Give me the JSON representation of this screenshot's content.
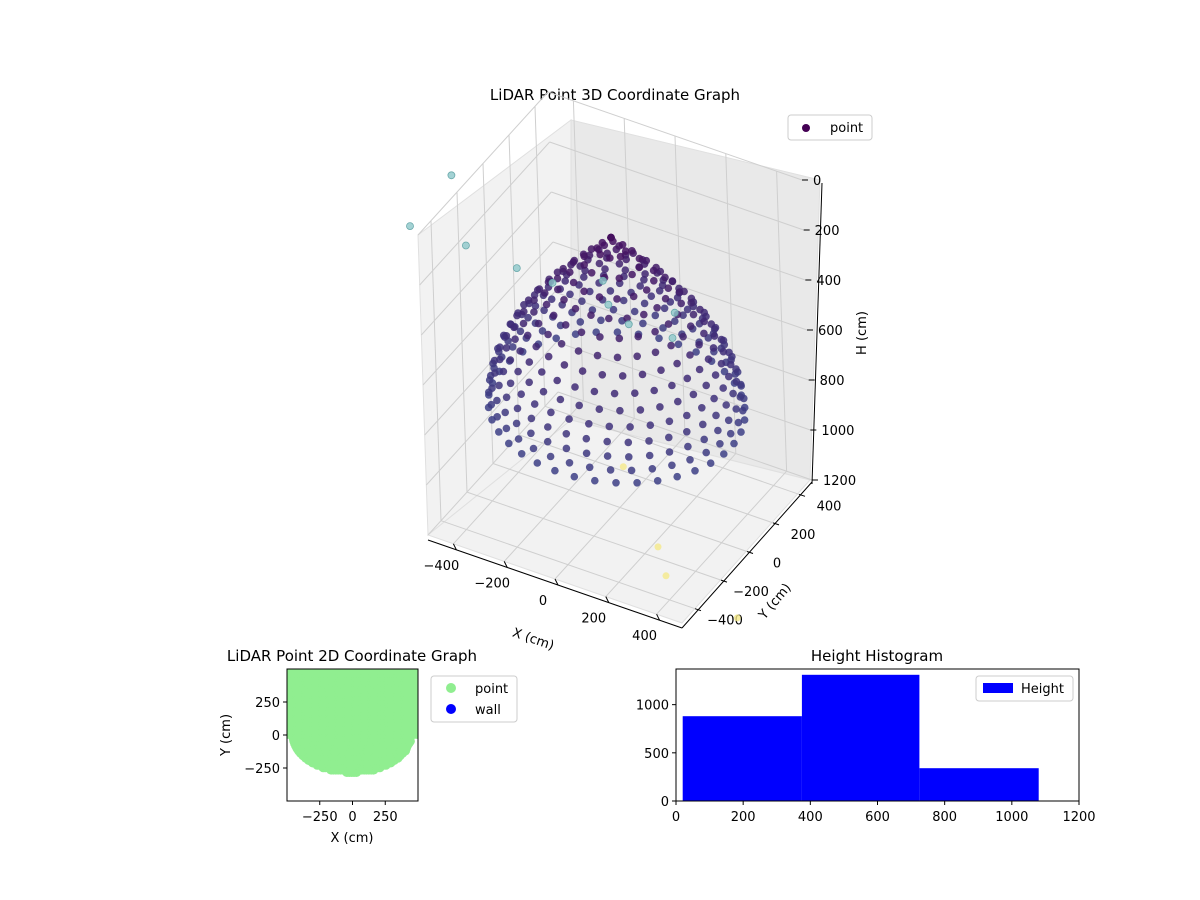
{
  "colors": {
    "bar": "#0000ff",
    "point2d": "#90ee90",
    "wall": "#0000ff",
    "legend_point3d": "#440154",
    "point_dark": "#450f5e",
    "point_mid": "#3d3f86",
    "outlier_top": "#8cc7c9",
    "outlier_low": "#f4e98a"
  },
  "chart_data": [
    {
      "type": "scatter",
      "title": "LiDAR Point 3D Coordinate Graph",
      "xlabel": "X (cm)",
      "ylabel": "Y (cm)",
      "zlabel": "H (cm)",
      "xlim": [
        -500,
        500
      ],
      "ylim": [
        -500,
        500
      ],
      "zlim": [
        0,
        1200
      ],
      "z_inverted": true,
      "xticks": [
        -400,
        -200,
        0,
        200,
        400
      ],
      "xtick_labels": [
        "−400",
        "−200",
        "0",
        "200",
        "400"
      ],
      "yticks": [
        -400,
        -200,
        0,
        200,
        400
      ],
      "ytick_labels": [
        "−400",
        "−200",
        "0",
        "200",
        "400"
      ],
      "zticks": [
        0,
        200,
        400,
        600,
        800,
        1000,
        1200
      ],
      "ztick_labels": [
        "0",
        "200",
        "400",
        "600",
        "800",
        "1000",
        "1200"
      ],
      "legend": {
        "entries": [
          "point"
        ],
        "placement": "top-right"
      },
      "grid": true,
      "surface": {
        "description_points": "dome shaped point cloud, radius ~450 cm",
        "radius": 450,
        "z_top": 120,
        "z_bottom": 800
      }
    },
    {
      "type": "scatter",
      "title": "LiDAR Point 2D Coordinate Graph",
      "xlabel": "X (cm)",
      "ylabel": "Y (cm)",
      "xlim": [
        -500,
        500
      ],
      "ylim": [
        -500,
        500
      ],
      "xticks": [
        -250,
        0,
        250
      ],
      "xtick_labels": [
        "−250",
        "0",
        "250"
      ],
      "yticks": [
        -250,
        0,
        250
      ],
      "ytick_labels": [
        "−250",
        "0",
        "250"
      ],
      "legend": {
        "entries": [
          "point",
          "wall"
        ],
        "placement": "outside-right"
      }
    },
    {
      "type": "bar",
      "title": "Height Histogram",
      "bins": [
        [
          20,
          375
        ],
        [
          375,
          725
        ],
        [
          725,
          1080
        ]
      ],
      "values": [
        880,
        1310,
        340
      ],
      "xlim": [
        0,
        1200
      ],
      "ylim": [
        0,
        1370
      ],
      "xticks": [
        0,
        200,
        400,
        600,
        800,
        1000,
        1200
      ],
      "yticks": [
        0,
        500,
        1000
      ],
      "legend": {
        "entries": [
          "Height"
        ],
        "placement": "top-right"
      }
    }
  ]
}
